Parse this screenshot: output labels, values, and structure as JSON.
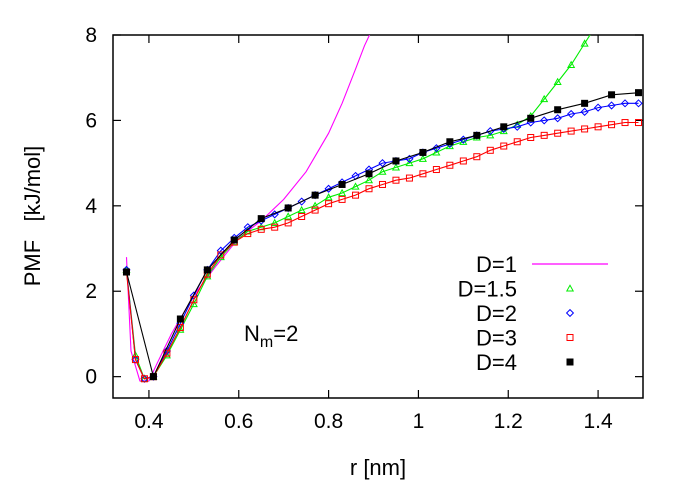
{
  "chart_data": {
    "type": "line",
    "title": "",
    "xlabel": "r [nm]",
    "ylabel": "PMF   [kJ/mol]",
    "xlim": [
      0.32,
      1.5
    ],
    "ylim": [
      -0.5,
      8
    ],
    "xticks": [
      0.4,
      0.6,
      0.8,
      1.0,
      1.2,
      1.4
    ],
    "xtick_labels": [
      "0.4",
      "0.6",
      "0.8",
      "1",
      "1.2",
      "1.4"
    ],
    "yticks": [
      0,
      2,
      4,
      6,
      8
    ],
    "ytick_labels": [
      "0",
      "2",
      "4",
      "6",
      "8"
    ],
    "grid": false,
    "legend_position": "lower-right",
    "annotation": {
      "main": "N",
      "sub": "m",
      "suffix": "=2"
    },
    "series": [
      {
        "name": "D=1",
        "color": "#ff00ff",
        "marker": "none",
        "x": [
          0.35,
          0.36,
          0.38,
          0.4,
          0.42,
          0.45,
          0.5,
          0.55,
          0.6,
          0.65,
          0.7,
          0.75,
          0.8,
          0.83,
          0.86,
          0.88,
          0.9
        ],
        "y": [
          2.8,
          0.6,
          -0.1,
          -0.1,
          0.35,
          1.0,
          1.9,
          2.6,
          3.25,
          3.65,
          4.15,
          4.8,
          5.7,
          6.4,
          7.2,
          7.75,
          8.2
        ]
      },
      {
        "name": "D=1.5",
        "color": "#00ee00",
        "marker": "triangle",
        "x": [
          0.35,
          0.37,
          0.39,
          0.41,
          0.44,
          0.47,
          0.5,
          0.53,
          0.56,
          0.59,
          0.62,
          0.65,
          0.68,
          0.71,
          0.74,
          0.77,
          0.8,
          0.83,
          0.86,
          0.89,
          0.92,
          0.95,
          0.98,
          1.01,
          1.04,
          1.07,
          1.1,
          1.13,
          1.16,
          1.19,
          1.22,
          1.25,
          1.28,
          1.31,
          1.34,
          1.37,
          1.4
        ],
        "y": [
          2.5,
          0.5,
          -0.05,
          0.0,
          0.5,
          1.1,
          1.7,
          2.35,
          2.8,
          3.15,
          3.4,
          3.5,
          3.6,
          3.75,
          3.9,
          4.0,
          4.2,
          4.3,
          4.45,
          4.6,
          4.8,
          4.9,
          5.0,
          5.1,
          5.25,
          5.4,
          5.5,
          5.6,
          5.65,
          5.75,
          5.9,
          6.1,
          6.5,
          6.9,
          7.3,
          7.8,
          8.3
        ]
      },
      {
        "name": "D=2",
        "color": "#0000ff",
        "marker": "diamond",
        "x": [
          0.35,
          0.37,
          0.39,
          0.41,
          0.44,
          0.47,
          0.5,
          0.53,
          0.56,
          0.59,
          0.62,
          0.65,
          0.68,
          0.71,
          0.74,
          0.77,
          0.8,
          0.83,
          0.86,
          0.89,
          0.92,
          0.95,
          0.98,
          1.01,
          1.04,
          1.07,
          1.1,
          1.13,
          1.16,
          1.19,
          1.22,
          1.25,
          1.28,
          1.31,
          1.34,
          1.37,
          1.4,
          1.43,
          1.46,
          1.49
        ],
        "y": [
          2.5,
          0.4,
          -0.05,
          0.0,
          0.6,
          1.25,
          1.9,
          2.5,
          2.95,
          3.25,
          3.5,
          3.65,
          3.8,
          3.95,
          4.1,
          4.25,
          4.4,
          4.55,
          4.7,
          4.85,
          5.0,
          5.05,
          5.1,
          5.25,
          5.35,
          5.45,
          5.55,
          5.65,
          5.75,
          5.8,
          5.85,
          5.95,
          6.0,
          6.05,
          6.15,
          6.2,
          6.3,
          6.35,
          6.4,
          6.4
        ]
      },
      {
        "name": "D=3",
        "color": "#ff0000",
        "marker": "square-open",
        "x": [
          0.35,
          0.37,
          0.39,
          0.41,
          0.44,
          0.47,
          0.5,
          0.53,
          0.56,
          0.59,
          0.62,
          0.65,
          0.68,
          0.71,
          0.74,
          0.77,
          0.8,
          0.83,
          0.86,
          0.89,
          0.92,
          0.95,
          0.98,
          1.01,
          1.04,
          1.07,
          1.1,
          1.13,
          1.16,
          1.19,
          1.22,
          1.25,
          1.28,
          1.31,
          1.34,
          1.37,
          1.4,
          1.43,
          1.46,
          1.49
        ],
        "y": [
          2.45,
          0.4,
          -0.05,
          0.0,
          0.55,
          1.15,
          1.8,
          2.4,
          2.85,
          3.15,
          3.35,
          3.45,
          3.5,
          3.6,
          3.75,
          3.9,
          4.05,
          4.15,
          4.25,
          4.4,
          4.5,
          4.6,
          4.65,
          4.75,
          4.85,
          4.95,
          5.05,
          5.15,
          5.3,
          5.4,
          5.5,
          5.6,
          5.65,
          5.7,
          5.75,
          5.8,
          5.85,
          5.9,
          5.95,
          5.95
        ]
      },
      {
        "name": "D=4",
        "color": "#000000",
        "marker": "square-filled",
        "x": [
          0.35,
          0.41,
          0.47,
          0.53,
          0.59,
          0.65,
          0.71,
          0.77,
          0.83,
          0.89,
          0.95,
          1.01,
          1.07,
          1.13,
          1.19,
          1.25,
          1.31,
          1.37,
          1.43,
          1.49
        ],
        "y": [
          2.45,
          0.0,
          1.35,
          2.5,
          3.2,
          3.7,
          3.95,
          4.25,
          4.5,
          4.75,
          5.05,
          5.25,
          5.5,
          5.65,
          5.85,
          6.05,
          6.25,
          6.4,
          6.6,
          6.65
        ]
      }
    ]
  }
}
